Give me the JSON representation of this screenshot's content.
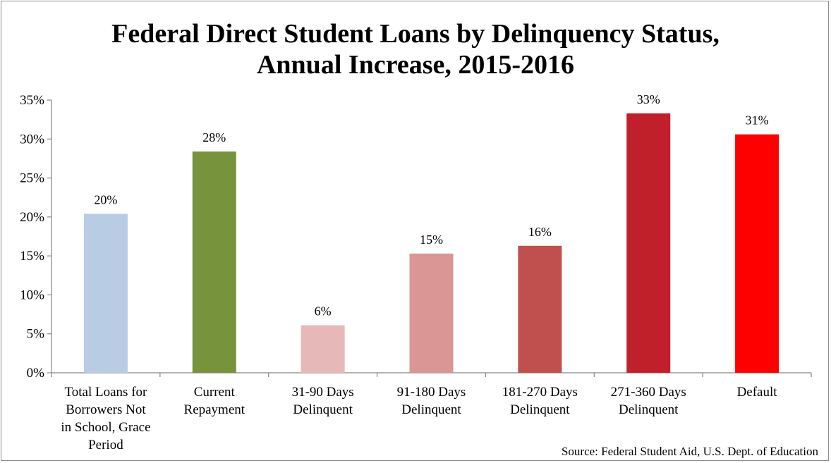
{
  "chart_data": {
    "type": "bar",
    "title": [
      "Federal Direct Student Loans by Delinquency Status,",
      "Annual Increase, 2015-2016"
    ],
    "categories": [
      [
        "Total Loans for",
        "Borrowers Not",
        "in School, Grace",
        "Period"
      ],
      [
        "Current",
        "Repayment"
      ],
      [
        "31-90 Days",
        "Delinquent"
      ],
      [
        "91-180 Days",
        "Delinquent"
      ],
      [
        "181-270 Days",
        "Delinquent"
      ],
      [
        "271-360 Days",
        "Delinquent"
      ],
      [
        "Default"
      ]
    ],
    "values": [
      20.4,
      28.4,
      6.1,
      15.3,
      16.3,
      33.3,
      30.6
    ],
    "data_labels": [
      "20%",
      "28%",
      "6%",
      "15%",
      "16%",
      "33%",
      "31%"
    ],
    "colors": [
      "#b8cce4",
      "#77933c",
      "#e6b9b8",
      "#d99694",
      "#c0504d",
      "#c0202a",
      "#ff0000"
    ],
    "ylim": [
      0,
      35
    ],
    "yticks": [
      {
        "value": 0,
        "label": "0%"
      },
      {
        "value": 5,
        "label": "5%"
      },
      {
        "value": 10,
        "label": "10%"
      },
      {
        "value": 15,
        "label": "15%"
      },
      {
        "value": 20,
        "label": "20%"
      },
      {
        "value": 25,
        "label": "25%"
      },
      {
        "value": 30,
        "label": "30%"
      },
      {
        "value": 35,
        "label": "35%"
      }
    ],
    "xlabel": "",
    "ylabel": "",
    "grid": false,
    "legend": "none",
    "source": "Source: Federal Student Aid, U.S. Dept. of Education"
  }
}
